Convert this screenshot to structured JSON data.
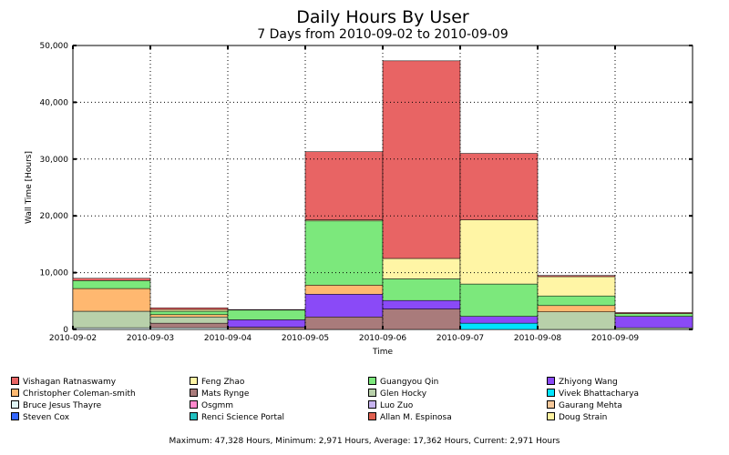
{
  "chart_data": {
    "type": "bar",
    "stacked": true,
    "title": "Daily Hours By User",
    "subtitle": "7 Days from 2010-09-02 to 2010-09-09",
    "xlabel": "Time",
    "ylabel": "Wall Time [Hours]",
    "ylim": [
      0,
      50000
    ],
    "yticks": [
      "0",
      "10,000",
      "20,000",
      "30,000",
      "40,000",
      "50,000"
    ],
    "ytick_values": [
      0,
      10000,
      20000,
      30000,
      40000,
      50000
    ],
    "categories": [
      "2010-09-02",
      "2010-09-03",
      "2010-09-04",
      "2010-09-05",
      "2010-09-06",
      "2010-09-07",
      "2010-09-08",
      "2010-09-09"
    ],
    "grid": true,
    "series": [
      {
        "name": "Steven Cox",
        "color": "#3366ff",
        "values": [
          0,
          0,
          0,
          0,
          0,
          0,
          0,
          0
        ]
      },
      {
        "name": "Vivek Bhattacharya",
        "color": "#00e5ff",
        "values": [
          0,
          0,
          0,
          0,
          0,
          1100,
          0,
          0
        ]
      },
      {
        "name": "Bruce Jesus Thayre",
        "color": "#e0f4f4",
        "values": [
          300,
          300,
          0,
          0,
          0,
          0,
          0,
          0
        ]
      },
      {
        "name": "Mats Rynge",
        "color": "#a97b7b",
        "values": [
          0,
          800,
          400,
          2200,
          3600,
          0,
          0,
          0
        ]
      },
      {
        "name": "Glen Hocky",
        "color": "#b8d0aa",
        "values": [
          2900,
          1100,
          0,
          0,
          0,
          0,
          3100,
          300
        ]
      },
      {
        "name": "Zhiyong Wang",
        "color": "#8a4af7",
        "values": [
          0,
          0,
          1300,
          4000,
          1500,
          1200,
          0,
          2000
        ]
      },
      {
        "name": "Christopher Coleman-smith",
        "color": "#ffb870",
        "values": [
          4000,
          400,
          0,
          1600,
          0,
          0,
          1100,
          0
        ]
      },
      {
        "name": "Guangyou Qin",
        "color": "#7ce87c",
        "values": [
          1400,
          600,
          1700,
          11300,
          3800,
          5700,
          1700,
          500
        ]
      },
      {
        "name": "Feng Zhao",
        "color": "#fff5a5",
        "values": [
          0,
          300,
          0,
          200,
          3600,
          11300,
          3400,
          0
        ]
      },
      {
        "name": "Vishagan Ratnaswamy",
        "color": "#e86464",
        "values": [
          400,
          300,
          100,
          12000,
          34800,
          11700,
          200,
          171
        ]
      }
    ]
  },
  "legend": [
    {
      "label": "Vishagan Ratnaswamy",
      "color": "#e86464"
    },
    {
      "label": "Feng Zhao",
      "color": "#fff5a5"
    },
    {
      "label": "Guangyou Qin",
      "color": "#7ce87c"
    },
    {
      "label": "Zhiyong Wang",
      "color": "#8a4af7"
    },
    {
      "label": "Christopher Coleman-smith",
      "color": "#ffb870"
    },
    {
      "label": "Mats Rynge",
      "color": "#a97b7b"
    },
    {
      "label": "Glen Hocky",
      "color": "#b8d0aa"
    },
    {
      "label": "Vivek Bhattacharya",
      "color": "#00e5ff"
    },
    {
      "label": "Bruce Jesus Thayre",
      "color": "#e0f4f4"
    },
    {
      "label": "Osgmm",
      "color": "#ff88cc"
    },
    {
      "label": "Luo Zuo",
      "color": "#c8b4f0"
    },
    {
      "label": "Gaurang Mehta",
      "color": "#f5c89a"
    },
    {
      "label": "Steven Cox",
      "color": "#3366ff"
    },
    {
      "label": "Renci Science Portal",
      "color": "#22c0c0"
    },
    {
      "label": "Allan M. Espinosa",
      "color": "#e06050"
    },
    {
      "label": "Doug Strain",
      "color": "#fff3a0"
    }
  ],
  "footer": "Maximum: 47,328 Hours, Minimum: 2,971 Hours, Average: 17,362 Hours, Current: 2,971 Hours"
}
